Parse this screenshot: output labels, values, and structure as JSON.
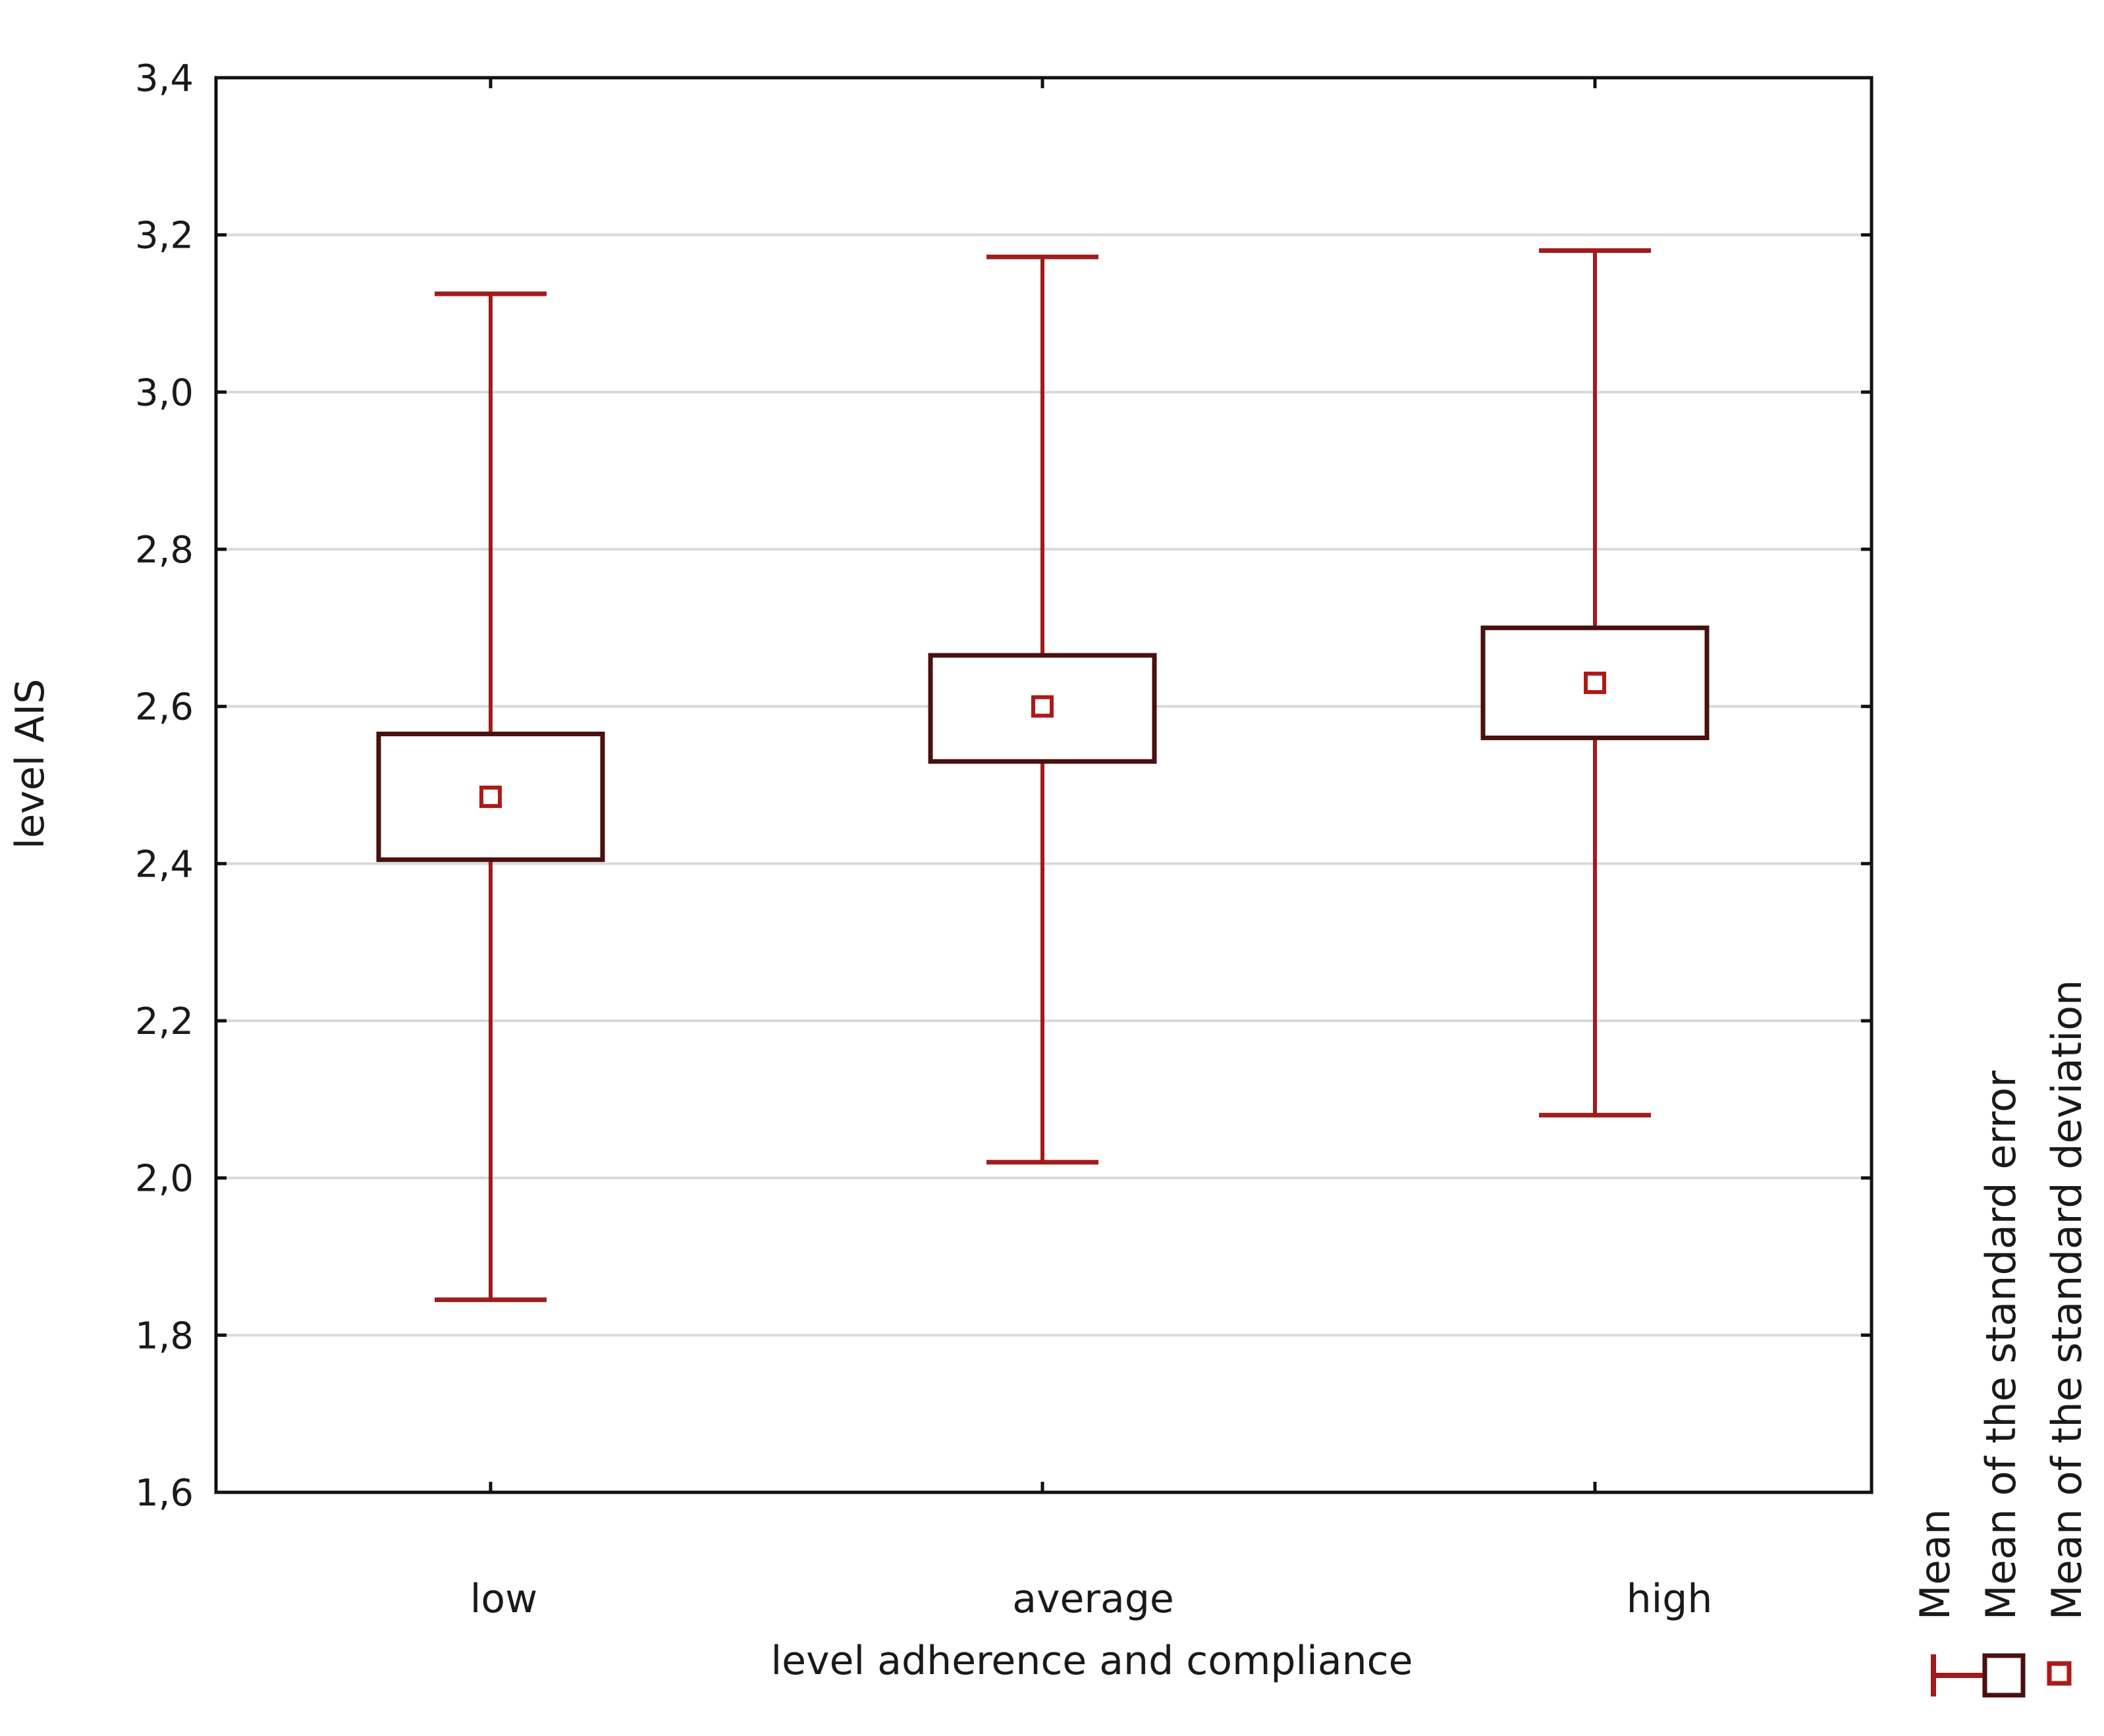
{
  "chart_data": {
    "type": "box",
    "xlabel": "level adherence and compliance",
    "ylabel": "level AIS",
    "ylim": [
      1.6,
      3.4
    ],
    "yticks": [
      "1,6",
      "1,8",
      "2,0",
      "2,2",
      "2,4",
      "2,6",
      "2,8",
      "3,0",
      "3,2",
      "3,4"
    ],
    "ytick_values": [
      1.6,
      1.8,
      2.0,
      2.2,
      2.4,
      2.6,
      2.8,
      3.0,
      3.2,
      3.4
    ],
    "grid": true,
    "categories": [
      "low",
      "average",
      "high"
    ],
    "series": [
      {
        "category": "low",
        "mean": 2.485,
        "se_low": 2.405,
        "se_high": 2.565,
        "sd_low": 1.845,
        "sd_high": 3.125
      },
      {
        "category": "average",
        "mean": 2.6,
        "se_low": 2.53,
        "se_high": 2.665,
        "sd_low": 2.02,
        "sd_high": 3.172
      },
      {
        "category": "high",
        "mean": 2.63,
        "se_low": 2.56,
        "se_high": 2.7,
        "sd_low": 2.08,
        "sd_high": 3.18
      }
    ],
    "legend": {
      "placement": "right",
      "items": [
        "Mean",
        "Mean of the standard error",
        "Mean of the standard deviation"
      ]
    },
    "colors": {
      "whisker": "#a01c1c",
      "box": "#4a1010",
      "mean": "#b01818",
      "grid": "#d9d9d9",
      "frame": "#111111"
    }
  }
}
